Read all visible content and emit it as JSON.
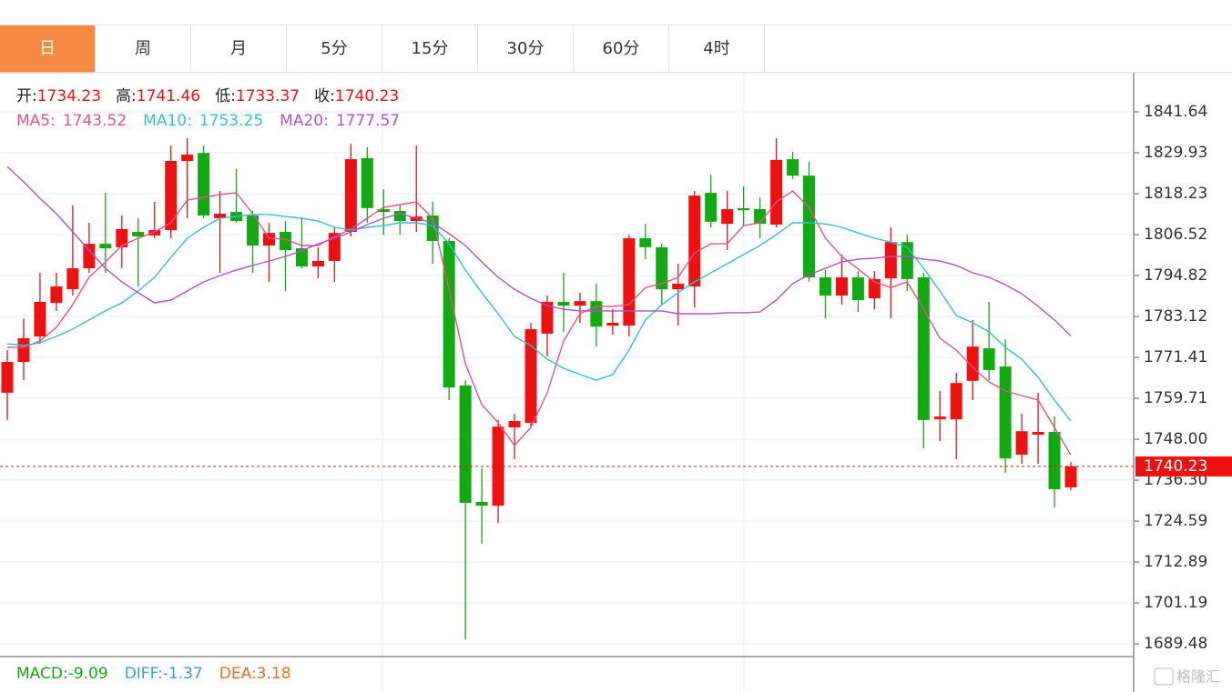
{
  "tabs": [
    "日",
    "周",
    "月",
    "5分",
    "15分",
    "30分",
    "60分",
    "4时"
  ],
  "chart_data": {
    "type": "candlestick",
    "up_color": "#ee1111",
    "down_color": "#12a912",
    "ohlc_labels": [
      "开:",
      "高:",
      "低:",
      "收:"
    ],
    "open": [
      1761.3,
      1770.1,
      1777.4,
      1787.0,
      1790.9,
      1796.9,
      1803.9,
      1802.9,
      1807.3,
      1806.3,
      1807.8,
      1827.6,
      1829.9,
      1811.2,
      1813.0,
      1812.0,
      1803.4,
      1807.3,
      1802.6,
      1797.4,
      1799.0,
      1807.3,
      1828.4,
      1813.8,
      1813.3,
      1810.4,
      1812.0,
      1804.7,
      1763.4,
      1730.1,
      1729.0,
      1751.4,
      1752.7,
      1778.2,
      1787.3,
      1786.2,
      1787.5,
      1780.5,
      1780.5,
      1805.5,
      1802.9,
      1790.9,
      1791.7,
      1818.5,
      1809.6,
      1814.1,
      1813.8,
      1809.4,
      1828.1,
      1823.4,
      1794.3,
      1789.1,
      1794.3,
      1788.3,
      1794.0,
      1804.4,
      1794.3,
      1753.7,
      1753.7,
      1764.7,
      1774.0,
      1768.8,
      1743.6,
      1749.3,
      1750.1,
      1734.23
    ],
    "high": [
      1773.5,
      1782.6,
      1795.6,
      1795.6,
      1814.9,
      1809.9,
      1818.5,
      1812.0,
      1811.2,
      1815.9,
      1832.0,
      1834.1,
      1832.0,
      1819.0,
      1825.3,
      1813.3,
      1809.9,
      1810.4,
      1811.2,
      1802.9,
      1808.6,
      1832.5,
      1831.5,
      1819.5,
      1815.1,
      1832.0,
      1815.9,
      1805.5,
      1764.9,
      1739.7,
      1753.5,
      1755.3,
      1781.3,
      1789.1,
      1795.6,
      1789.9,
      1792.5,
      1785.2,
      1806.5,
      1809.6,
      1803.9,
      1798.2,
      1819.0,
      1823.7,
      1819.0,
      1820.3,
      1817.2,
      1834.1,
      1830.2,
      1827.3,
      1796.4,
      1800.8,
      1796.1,
      1796.1,
      1808.6,
      1806.5,
      1795.6,
      1761.8,
      1767.0,
      1782.1,
      1787.3,
      1776.6,
      1755.3,
      1761.3,
      1754.5,
      1741.46
    ],
    "low": [
      1753.5,
      1764.9,
      1775.3,
      1784.7,
      1789.1,
      1795.6,
      1795.6,
      1796.9,
      1791.7,
      1805.5,
      1805.5,
      1811.2,
      1811.2,
      1795.6,
      1809.9,
      1795.6,
      1793.0,
      1790.4,
      1796.9,
      1794.0,
      1793.0,
      1806.0,
      1809.9,
      1806.5,
      1806.5,
      1807.3,
      1798.2,
      1759.2,
      1690.8,
      1718.1,
      1724.1,
      1742.3,
      1751.4,
      1771.7,
      1778.7,
      1781.3,
      1774.5,
      1777.9,
      1777.4,
      1799.5,
      1786.5,
      1780.5,
      1785.7,
      1808.6,
      1802.1,
      1809.1,
      1805.5,
      1808.6,
      1822.4,
      1793.0,
      1782.6,
      1786.5,
      1784.4,
      1785.2,
      1782.6,
      1790.4,
      1745.4,
      1747.5,
      1742.3,
      1759.2,
      1764.9,
      1738.4,
      1741.0,
      1741.0,
      1728.5,
      1733.37
    ],
    "close": [
      1770.1,
      1776.9,
      1787.3,
      1791.7,
      1796.9,
      1803.9,
      1802.6,
      1808.1,
      1806.0,
      1807.8,
      1827.6,
      1829.4,
      1812.0,
      1812.5,
      1810.4,
      1803.4,
      1807.0,
      1802.1,
      1797.4,
      1799.0,
      1807.0,
      1828.1,
      1814.1,
      1813.0,
      1810.4,
      1811.7,
      1804.7,
      1762.8,
      1729.8,
      1729.0,
      1751.6,
      1753.2,
      1779.5,
      1787.3,
      1786.2,
      1787.5,
      1780.2,
      1781.3,
      1805.5,
      1802.9,
      1790.9,
      1792.5,
      1817.7,
      1810.2,
      1813.8,
      1813.5,
      1809.6,
      1827.9,
      1823.4,
      1794.3,
      1789.1,
      1794.3,
      1787.8,
      1793.8,
      1804.4,
      1793.8,
      1753.5,
      1754.5,
      1764.1,
      1774.5,
      1767.8,
      1742.5,
      1750.3,
      1750.1,
      1733.7,
      1740.23
    ],
    "legend_separator": ":",
    "series": [
      {
        "name": "MA5",
        "color": "#e8508a",
        "values": [
          1774.3,
          1774.3,
          1776.1,
          1780.0,
          1786.5,
          1794.3,
          1798.7,
          1803.4,
          1805.5,
          1807.3,
          1809.9,
          1816.4,
          1817.2,
          1818.0,
          1818.5,
          1812.5,
          1805.5,
          1805.2,
          1803.4,
          1803.4,
          1806.0,
          1808.1,
          1811.2,
          1814.3,
          1815.1,
          1815.9,
          1811.2,
          1790.9,
          1769.6,
          1757.9,
          1752.7,
          1746.2,
          1751.4,
          1761.3,
          1776.1,
          1783.9,
          1786.0,
          1786.0,
          1786.5,
          1791.4,
          1792.5,
          1794.3,
          1801.3,
          1803.9,
          1803.9,
          1809.1,
          1809.9,
          1815.9,
          1819.0,
          1814.3,
          1805.5,
          1800.3,
          1796.7,
          1793.0,
          1791.4,
          1793.0,
          1785.2,
          1776.9,
          1773.5,
          1768.6,
          1764.4,
          1761.8,
          1760.5,
          1759.2,
          1751.4,
          1743.52
        ]
      },
      {
        "name": "MA10",
        "color": "#2ec0d4",
        "values": [
          1775.3,
          1774.8,
          1775.6,
          1777.4,
          1779.5,
          1782.1,
          1784.7,
          1787.0,
          1790.4,
          1794.3,
          1800.0,
          1805.5,
          1808.6,
          1811.2,
          1811.7,
          1812.3,
          1812.3,
          1811.7,
          1811.2,
          1810.4,
          1808.6,
          1807.8,
          1808.6,
          1809.1,
          1809.9,
          1809.9,
          1809.1,
          1803.9,
          1796.4,
          1789.9,
          1783.9,
          1777.4,
          1774.8,
          1770.9,
          1768.3,
          1766.5,
          1764.9,
          1766.5,
          1773.5,
          1782.1,
          1786.5,
          1789.9,
          1793.0,
          1795.6,
          1798.2,
          1800.8,
          1803.4,
          1806.5,
          1809.9,
          1809.9,
          1809.6,
          1808.6,
          1807.0,
          1805.5,
          1804.4,
          1802.9,
          1796.9,
          1790.4,
          1783.4,
          1781.3,
          1778.7,
          1774.3,
          1770.9,
          1765.7,
          1759.2,
          1753.25
        ]
      },
      {
        "name": "MA20",
        "color": "#b052c6",
        "values": [
          1826.0,
          1821.6,
          1816.9,
          1812.5,
          1807.3,
          1802.1,
          1796.9,
          1793.0,
          1789.9,
          1787.0,
          1787.8,
          1790.4,
          1793.0,
          1794.8,
          1796.4,
          1797.7,
          1799.0,
          1800.3,
          1801.9,
          1803.9,
          1805.5,
          1807.3,
          1809.4,
          1811.2,
          1812.5,
          1811.2,
          1809.9,
          1806.8,
          1803.4,
          1798.7,
          1794.3,
          1790.9,
          1788.3,
          1786.2,
          1785.2,
          1784.7,
          1784.7,
          1784.7,
          1784.7,
          1784.7,
          1784.7,
          1783.9,
          1783.9,
          1783.9,
          1784.2,
          1784.2,
          1784.4,
          1787.8,
          1792.5,
          1795.1,
          1796.9,
          1798.7,
          1799.5,
          1799.8,
          1800.3,
          1800.3,
          1799.5,
          1799.0,
          1797.7,
          1795.6,
          1794.3,
          1792.2,
          1789.6,
          1786.0,
          1782.1,
          1777.57
        ]
      }
    ],
    "ylim": [
      1685.86,
      1852.82
    ],
    "yticks": [
      1841.64,
      1829.93,
      1818.23,
      1806.52,
      1794.82,
      1783.12,
      1771.41,
      1759.71,
      {
        "value": 1748,
        "label": "1748.00"
      },
      {
        "value": 1736.3,
        "label": "1736.30"
      },
      1724.59,
      1712.89,
      1701.19,
      1689.48
    ],
    "grid": true
  },
  "macd_legend": [
    {
      "name": "MACD:",
      "value": -9.09,
      "color": "#12a912"
    },
    {
      "name": "DIFF:",
      "value": -1.37,
      "color": "#3a9ad9"
    },
    {
      "name": "DEA:",
      "value": 3.18,
      "color": "#ef6c1a"
    }
  ],
  "watermark": "格隆汇"
}
